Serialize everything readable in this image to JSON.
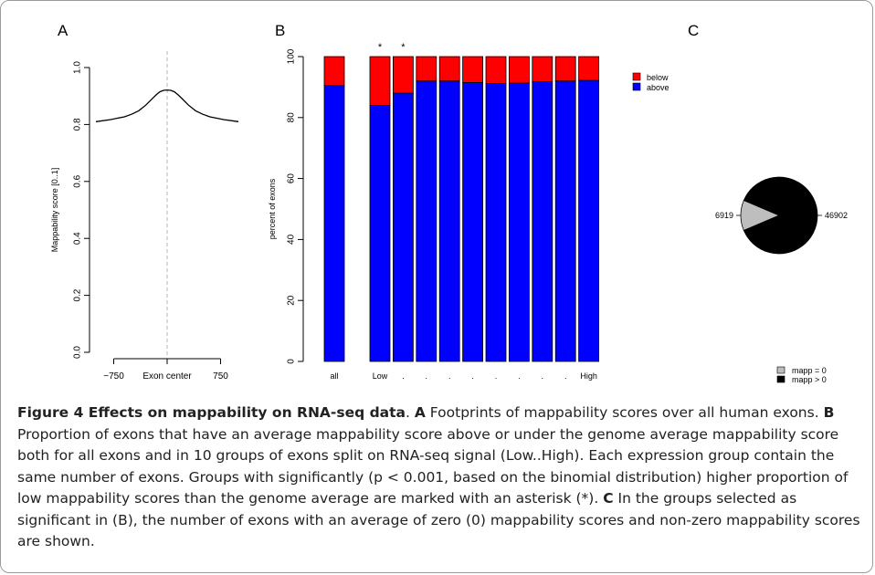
{
  "panels": {
    "a": "A",
    "b": "B",
    "c": "C"
  },
  "chart_data": [
    {
      "type": "line",
      "panel": "A",
      "title": "",
      "xlabel": "",
      "ylabel": "Mappability score [0..1]",
      "x_ticks": [
        "−750",
        "Exon center",
        "750"
      ],
      "x_tick_values": [
        -750,
        0,
        750
      ],
      "y_ticks": [
        "0.0",
        "0.2",
        "0.4",
        "0.6",
        "0.8",
        "1.0"
      ],
      "y_tick_values": [
        0.0,
        0.2,
        0.4,
        0.6,
        0.8,
        1.0
      ],
      "xlim": [
        -1000,
        1000
      ],
      "ylim": [
        0.0,
        1.0
      ],
      "center_line": 0,
      "series": [
        {
          "x": [
            -1000,
            -800,
            -600,
            -500,
            -400,
            -300,
            -200,
            -150,
            -100,
            -50,
            0,
            50,
            100,
            150,
            200,
            300,
            400,
            500,
            600,
            800,
            1000
          ],
          "y": [
            0.81,
            0.817,
            0.827,
            0.836,
            0.848,
            0.868,
            0.893,
            0.905,
            0.915,
            0.92,
            0.921,
            0.92,
            0.915,
            0.905,
            0.893,
            0.868,
            0.848,
            0.836,
            0.827,
            0.817,
            0.81
          ]
        }
      ]
    },
    {
      "type": "bar",
      "panel": "B",
      "stacked": true,
      "ylabel": "percent of exons",
      "categories": [
        "all",
        "Low",
        ".",
        ".",
        ".",
        ".",
        ".",
        ".",
        ".",
        ".",
        "High"
      ],
      "y_ticks": [
        "0",
        "20",
        "40",
        "60",
        "80",
        "100"
      ],
      "ylim": [
        0,
        100
      ],
      "significant_marker": "*",
      "significant": [
        false,
        true,
        true,
        false,
        false,
        false,
        false,
        false,
        false,
        false,
        false
      ],
      "series": [
        {
          "name": "above",
          "color": "#0000ff",
          "values": [
            90.5,
            84,
            88,
            92,
            92,
            91.5,
            91.2,
            91.3,
            91.8,
            92,
            92.2
          ]
        },
        {
          "name": "below",
          "color": "#ff0000",
          "values": [
            9.5,
            16,
            12,
            8,
            8,
            8.5,
            8.8,
            8.7,
            8.2,
            8,
            7.8
          ]
        }
      ],
      "legend": {
        "position": "top-right",
        "items": [
          "below",
          "above"
        ]
      }
    },
    {
      "type": "pie",
      "panel": "C",
      "slices": [
        {
          "label": "6919",
          "value": 6919,
          "category": "mapp = 0",
          "color": "#bebebe"
        },
        {
          "label": "46902",
          "value": 46902,
          "category": "mapp > 0",
          "color": "#000000"
        }
      ],
      "legend": {
        "position": "bottom-right",
        "items": [
          "mapp = 0",
          "mapp > 0"
        ]
      }
    }
  ],
  "caption": {
    "label": "Figure 4 Effects on mappability on RNA-seq data",
    "sep": ". ",
    "a_label": "A",
    "a_text": " Footprints of mappability scores over all human exons. ",
    "b_label": "B",
    "b_text": " Proportion of exons that have an average mappability score above or under the genome average mappability score both for all exons and in 10 groups of exons split on RNA-seq signal (Low..High). Each expression group contain the same number of exons. Groups with significantly (p < 0.001, based on the binomial distribution) higher proportion of low mappability scores than the genome average are marked with an asterisk (*). ",
    "c_label": "C",
    "c_text": " In the groups selected as significant in (B), the number of exons with an average of zero (0) mappability scores and non-zero mappability scores are shown."
  }
}
